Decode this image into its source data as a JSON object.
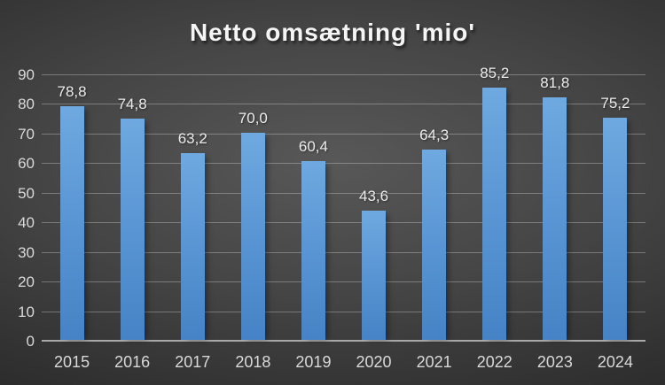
{
  "chart_data": {
    "type": "bar",
    "title": "Netto omsætning 'mio'",
    "categories": [
      "2015",
      "2016",
      "2017",
      "2018",
      "2019",
      "2020",
      "2021",
      "2022",
      "2023",
      "2024"
    ],
    "values": [
      78.8,
      74.8,
      63.2,
      70.0,
      60.4,
      43.6,
      64.3,
      85.2,
      81.8,
      75.2
    ],
    "value_labels": [
      "78,8",
      "74,8",
      "63,2",
      "70,0",
      "60,4",
      "43,6",
      "64,3",
      "85,2",
      "81,8",
      "75,2"
    ],
    "ytick_labels": [
      "0",
      "10",
      "20",
      "30",
      "40",
      "50",
      "60",
      "70",
      "80",
      "90"
    ],
    "ylim": [
      0,
      90
    ],
    "ytick_step": 10,
    "xlabel": "",
    "ylabel": "",
    "grid": true,
    "legend": false,
    "colors": {
      "background_center": "#585858",
      "background_edge": "#1e1e1e",
      "bar_top": "#6fa9e0",
      "bar_bottom": "#4583c6",
      "gridline": "#8f8f8f",
      "axis_line": "#a8a8a8",
      "title_text": "#f5f5f5",
      "tick_text": "#d9d9d9",
      "data_label_text": "#ececec"
    }
  }
}
